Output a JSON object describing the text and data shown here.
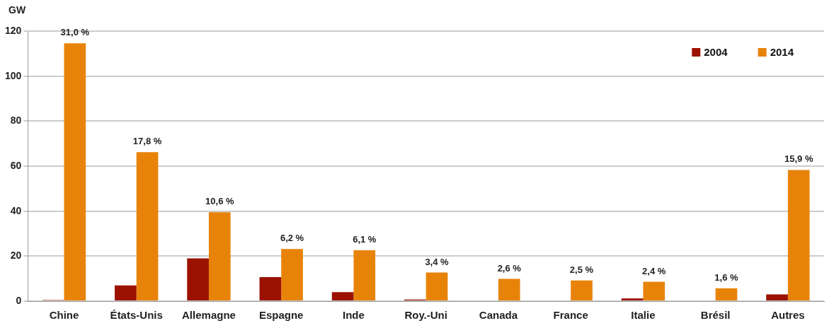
{
  "chart_data": {
    "type": "bar",
    "ylabel": "GW",
    "categories": [
      "Chine",
      "États-Unis",
      "Allemagne",
      "Espagne",
      "Inde",
      "Roy.-Uni",
      "Canada",
      "France",
      "Italie",
      "Brésil",
      "Autres"
    ],
    "series": [
      {
        "name": "2004",
        "color": "#9b1200",
        "values": [
          0.5,
          7,
          19,
          10.7,
          4,
          0.7,
          0,
          0,
          1.2,
          0,
          3
        ]
      },
      {
        "name": "2014",
        "color": "#e8830a",
        "values": [
          114.6,
          66.2,
          39.5,
          23.2,
          22.6,
          12.7,
          9.9,
          9.2,
          8.6,
          5.7,
          58.3
        ]
      }
    ],
    "annotations": [
      {
        "text": "31,0 %",
        "x": "Chine",
        "y": 114.6
      },
      {
        "text": "17,8 %",
        "x": "États-Unis",
        "y": 66.2
      },
      {
        "text": "10,6 %",
        "x": "Allemagne",
        "y": 39.5
      },
      {
        "text": "6,2 %",
        "x": "Espagne",
        "y": 23.2
      },
      {
        "text": "6,1 %",
        "x": "Inde",
        "y": 22.6
      },
      {
        "text": "3,4 %",
        "x": "Roy.-Uni",
        "y": 12.7
      },
      {
        "text": "2,6 %",
        "x": "Canada",
        "y": 9.9
      },
      {
        "text": "2,5 %",
        "x": "France",
        "y": 9.2
      },
      {
        "text": "2,4 %",
        "x": "Italie",
        "y": 8.6
      },
      {
        "text": "1,6 %",
        "x": "Brésil",
        "y": 5.7
      },
      {
        "text": "15,9 %",
        "x": "Autres",
        "y": 58.3
      }
    ],
    "ylim": [
      0,
      120
    ],
    "yticks": [
      0,
      20,
      40,
      60,
      80,
      100,
      120
    ],
    "grid": "y",
    "legend": "top right"
  }
}
